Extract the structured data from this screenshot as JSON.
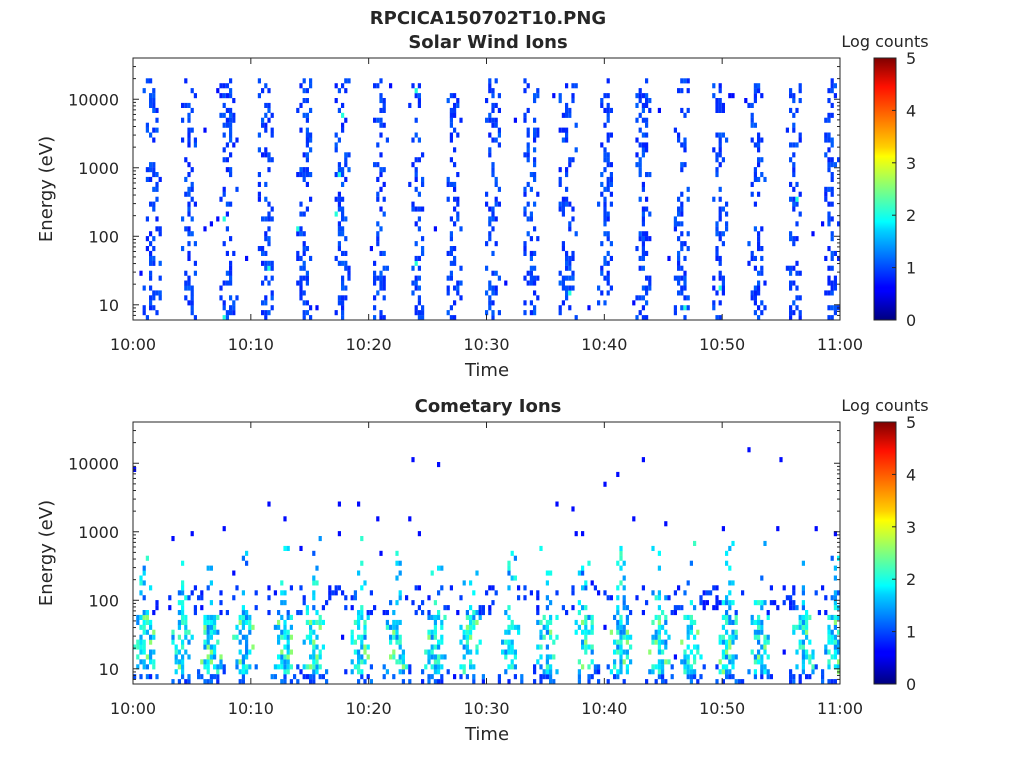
{
  "figure": {
    "title": "RPCICA150702T10.PNG"
  },
  "chart_data": [
    {
      "type": "heatmap",
      "title": "Solar Wind Ions",
      "xlabel": "Time",
      "ylabel": "Energy (eV)",
      "x_ticks": [
        "10:00",
        "10:10",
        "10:20",
        "10:30",
        "10:40",
        "10:50",
        "11:00"
      ],
      "xlim": [
        "10:00",
        "11:00"
      ],
      "y_ticks": [
        "10",
        "100",
        "1000",
        "10000"
      ],
      "y_tick_values": [
        10,
        100,
        1000,
        10000
      ],
      "ylim": [
        6,
        40000
      ],
      "y_scale": "log",
      "colorbar": {
        "label": "Log counts",
        "ticks": [
          "0",
          "1",
          "2",
          "3",
          "4",
          "5"
        ],
        "range": [
          0,
          5
        ],
        "colormap": "jet"
      },
      "pattern": {
        "kind": "periodic-bursts",
        "burst_centers_min": [
          1.5,
          4.7,
          8.0,
          11.2,
          14.4,
          17.6,
          20.8,
          24.0,
          27.2,
          30.4,
          33.6,
          36.8,
          40.0,
          43.2,
          46.4,
          49.6,
          52.8,
          56.0,
          59.2
        ],
        "energy_range_eV": [
          6,
          20000
        ],
        "typical_log_counts": 0.3,
        "peak_log_counts": 1.8
      }
    },
    {
      "type": "heatmap",
      "title": "Cometary Ions",
      "xlabel": "Time",
      "ylabel": "Energy (eV)",
      "x_ticks": [
        "10:00",
        "10:10",
        "10:20",
        "10:30",
        "10:40",
        "10:50",
        "11:00"
      ],
      "xlim": [
        "10:00",
        "11:00"
      ],
      "y_ticks": [
        "10",
        "100",
        "1000",
        "10000"
      ],
      "y_tick_values": [
        10,
        100,
        1000,
        10000
      ],
      "ylim": [
        6,
        40000
      ],
      "y_scale": "log",
      "colorbar": {
        "label": "Log counts",
        "ticks": [
          "0",
          "1",
          "2",
          "3",
          "4",
          "5"
        ],
        "range": [
          0,
          5
        ],
        "colormap": "jet"
      },
      "pattern": {
        "kind": "low-energy-enhancements",
        "burst_centers_min": [
          0.8,
          4.0,
          6.5,
          9.3,
          12.7,
          15.2,
          19.1,
          22.3,
          25.6,
          28.5,
          31.8,
          35.0,
          38.2,
          41.3,
          44.5,
          47.2,
          50.4,
          53.1,
          56.8,
          59.5
        ],
        "core_energy_range_eV": [
          8,
          60
        ],
        "sparse_energy_range_eV": [
          60,
          20000
        ],
        "typical_log_counts": 1.2,
        "peak_log_counts": 2.4
      }
    }
  ]
}
